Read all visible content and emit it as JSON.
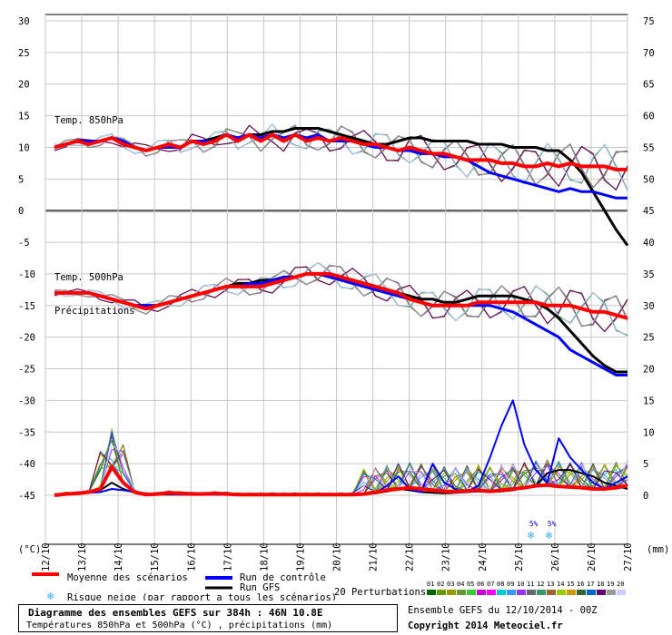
{
  "chart_data": {
    "type": "line",
    "title": "Diagramme des ensembles GEFS sur 384h : 46N 10.8E",
    "subtitle": "Températures 850hPa et 500hPa (°C) , précipitations (mm)",
    "x_labels": [
      "12/10",
      "13/10",
      "14/10",
      "15/10",
      "16/10",
      "17/10",
      "18/10",
      "19/10",
      "20/10",
      "21/10",
      "22/10",
      "23/10",
      "24/10",
      "25/10",
      "26/10",
      "26/10",
      "27/10"
    ],
    "left_axis": {
      "unit": "(°C)",
      "ylim": [
        -45,
        30
      ],
      "ticks": [
        30,
        25,
        20,
        15,
        10,
        5,
        0,
        -5,
        -10,
        -15,
        -20,
        -25,
        -30,
        -35,
        -40,
        -45
      ]
    },
    "right_axis": {
      "unit": "(mm)",
      "ticks": [
        75,
        70,
        65,
        60,
        55,
        50,
        45,
        40,
        35,
        30,
        25,
        20,
        15,
        10,
        5,
        0
      ]
    },
    "panel_labels": {
      "t850": "Temp. 850hPa",
      "t500": "Temp. 500hPa",
      "precip": "Précipitations"
    },
    "series": [
      {
        "name": "Moyenne des scénarios",
        "color": "#ff0000",
        "t850": [
          10,
          10.5,
          11,
          10.5,
          11,
          11.5,
          10.5,
          10,
          9.5,
          10,
          10.5,
          10,
          11,
          10.5,
          11,
          12,
          11,
          12,
          11,
          12,
          11,
          12,
          11,
          11.5,
          11,
          11.5,
          11,
          10.5,
          10.5,
          10,
          9.5,
          10,
          9.5,
          9,
          9,
          8.5,
          8,
          8,
          8,
          7.5,
          7.5,
          7,
          7,
          7.5,
          7,
          7.5,
          7,
          7,
          7,
          6.5,
          6.5
        ],
        "t500": [
          -13,
          -13,
          -13,
          -13,
          -13.5,
          -14,
          -14.5,
          -15,
          -15.5,
          -15,
          -14.5,
          -14,
          -13.5,
          -13,
          -12.5,
          -12,
          -12,
          -12,
          -12,
          -11.5,
          -11,
          -10.5,
          -10,
          -10,
          -10,
          -10.5,
          -11,
          -11.5,
          -12,
          -12.5,
          -13,
          -14,
          -14.5,
          -15,
          -15,
          -15,
          -15,
          -14.5,
          -14.5,
          -14.5,
          -14.5,
          -14.5,
          -14.5,
          -15,
          -15,
          -15,
          -15.5,
          -16,
          -16,
          -16.5,
          -17
        ],
        "precip": [
          0,
          0.2,
          0.3,
          0.5,
          1,
          4.5,
          2,
          0.5,
          0.1,
          0.2,
          0.4,
          0.3,
          0.2,
          0.2,
          0.3,
          0.2,
          0.1,
          0.1,
          0.1,
          0.1,
          0.1,
          0.1,
          0.1,
          0.1,
          0.1,
          0.1,
          0.1,
          0.2,
          0.5,
          0.8,
          1,
          1.2,
          1,
          0.8,
          0.6,
          0.6,
          0.7,
          0.8,
          0.6,
          0.8,
          1,
          1.2,
          1.5,
          1.6,
          1.4,
          1.3,
          1.2,
          1,
          1,
          1.2,
          1.5
        ]
      },
      {
        "name": "Run de contrôle",
        "color": "#0000ff",
        "t850": [
          10,
          10.5,
          11,
          11,
          11,
          11.5,
          11,
          10,
          9.5,
          10,
          10,
          10,
          11,
          11,
          11,
          12,
          11.5,
          12,
          11.5,
          12,
          11.5,
          12,
          11.5,
          12,
          11,
          11,
          11,
          10.5,
          10,
          10,
          9.5,
          9.5,
          9,
          9,
          8.5,
          8.5,
          8,
          7,
          6,
          5.5,
          5,
          4.5,
          4,
          3.5,
          3,
          3.5,
          3,
          3,
          2.5,
          2,
          2
        ],
        "t500": [
          -13,
          -13,
          -13,
          -13,
          -13.5,
          -14,
          -14.5,
          -15,
          -15,
          -15,
          -14.5,
          -14,
          -13.5,
          -13,
          -12.5,
          -12,
          -12,
          -11.5,
          -11.5,
          -11,
          -10.5,
          -10.5,
          -10,
          -10,
          -10.5,
          -11,
          -11.5,
          -12,
          -12.5,
          -13,
          -13.5,
          -14,
          -14.5,
          -15,
          -15,
          -15,
          -15,
          -15,
          -15,
          -15.5,
          -16,
          -17,
          -18,
          -19,
          -20,
          -22,
          -23,
          -24,
          -25,
          -26,
          -26
        ],
        "precip": [
          0,
          0.1,
          0.3,
          0.4,
          0.5,
          1,
          0.8,
          0.5,
          0.1,
          0.1,
          0.2,
          0.1,
          0.1,
          0.1,
          0.1,
          0.1,
          0.1,
          0.1,
          0.1,
          0.1,
          0.1,
          0.1,
          0.1,
          0.1,
          0.1,
          0.1,
          0.1,
          0.2,
          0.4,
          1.5,
          3,
          1,
          0.5,
          5,
          2,
          1,
          0.5,
          1.5,
          6,
          11,
          15,
          8,
          4,
          2,
          9,
          6,
          4,
          2,
          1,
          2,
          3
        ]
      },
      {
        "name": "Run GFS",
        "color": "#000000",
        "t850": [
          10,
          10.5,
          11,
          11,
          11,
          11.5,
          11,
          10,
          9.5,
          10,
          10.5,
          10,
          11,
          11,
          11.5,
          12,
          11.5,
          12,
          12,
          12.5,
          12.5,
          13,
          13,
          13,
          12.5,
          12,
          11.5,
          11,
          10.5,
          10.5,
          11,
          11.5,
          11.5,
          11,
          11,
          11,
          11,
          10.5,
          10.5,
          10.5,
          10,
          10,
          10,
          9.5,
          9.5,
          8,
          6,
          3,
          0,
          -3,
          -5.5
        ],
        "t500": [
          -13,
          -13,
          -13,
          -13,
          -13.5,
          -14,
          -14.5,
          -15,
          -15,
          -15,
          -14.5,
          -14,
          -13.5,
          -13,
          -12.5,
          -12,
          -11.5,
          -11.5,
          -11,
          -11,
          -10.5,
          -10.5,
          -10,
          -10,
          -10,
          -10.5,
          -11,
          -11.5,
          -12,
          -12.5,
          -13,
          -13.5,
          -14,
          -14,
          -14.5,
          -14.5,
          -14,
          -13.5,
          -13.5,
          -13.5,
          -13.5,
          -14,
          -14.5,
          -15.5,
          -17,
          -19,
          -21,
          -23,
          -24.5,
          -25.5,
          -25.5
        ],
        "precip": [
          0,
          0.1,
          0.2,
          0.5,
          0.8,
          2,
          1,
          0.4,
          0.1,
          0.1,
          0.1,
          0.1,
          0.1,
          0.1,
          0.1,
          0.1,
          0.1,
          0.1,
          0.1,
          0.1,
          0.1,
          0.1,
          0.1,
          0.1,
          0.1,
          0.1,
          0.1,
          0.2,
          0.3,
          0.6,
          1,
          0.8,
          0.5,
          0.4,
          0.3,
          0.4,
          0.5,
          0.6,
          0.5,
          0.6,
          0.8,
          1.2,
          1.5,
          3.5,
          4,
          4,
          3.5,
          3,
          2,
          1.5,
          1
        ]
      }
    ],
    "perturbation_colors": [
      "#006600",
      "#669900",
      "#999900",
      "#669933",
      "#33cc33",
      "#cc00cc",
      "#ff00ff",
      "#00cccc",
      "#3399ff",
      "#9933ff",
      "#666666",
      "#339966",
      "#996633",
      "#99cc00",
      "#cc9900",
      "#336633",
      "#0066cc",
      "#660066",
      "#999999",
      "#ccccff"
    ],
    "snow_risk": [
      {
        "date_index": 13.4,
        "label": "5%"
      },
      {
        "date_index": 13.9,
        "label": "5%"
      }
    ]
  },
  "legend": {
    "mean": "Moyenne des scénarios",
    "control": "Run de contrôle",
    "gfs": "Run GFS",
    "snow": "Risque neige (par rapport a tous les scénarios)",
    "perturbations": "20 Perturbations",
    "perturbation_ids": [
      "01",
      "02",
      "03",
      "04",
      "05",
      "06",
      "07",
      "08",
      "09",
      "10",
      "11",
      "12",
      "13",
      "14",
      "15",
      "16",
      "17",
      "18",
      "19",
      "20"
    ]
  },
  "footer": {
    "title": "Diagramme des ensembles GEFS sur 384h : 46N 10.8E",
    "subtitle": "Températures 850hPa et 500hPa (°C) , précipitations (mm)",
    "run_info": "Ensemble GEFS du 12/10/2014 - 00Z",
    "copyright": "Copyright 2014 Meteociel.fr"
  }
}
